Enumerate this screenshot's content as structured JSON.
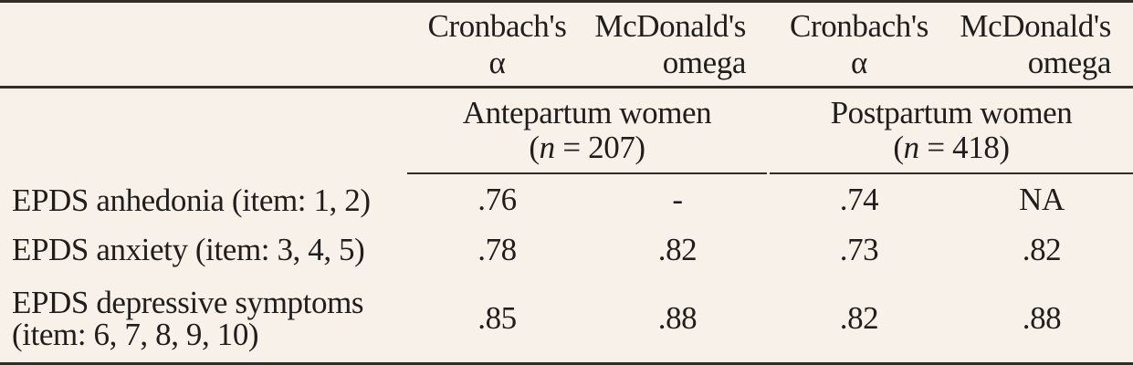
{
  "table": {
    "description": "Internal consistency (reliability) statistics for EPDS subscales",
    "colors": {
      "background": "#f8f1ea",
      "text": "#211d1b",
      "rule_lines": "#332d28"
    },
    "column_headers": [
      {
        "line1": "Cronbach's",
        "line2": "α"
      },
      {
        "line1": "McDonald's",
        "line2": "omega"
      },
      {
        "line1": "Cronbach's",
        "line2": "α"
      },
      {
        "line1": "McDonald's",
        "line2": "omega"
      }
    ],
    "group_headers": [
      {
        "title": "Antepartum women",
        "n_open": "(",
        "n_var": "n",
        "n_rest": " = 207)"
      },
      {
        "title": "Postpartum women",
        "n_open": "(",
        "n_var": "n",
        "n_rest": " = 418)"
      }
    ],
    "rows": [
      {
        "label_lines": [
          "EPDS anhedonia (item: 1, 2)"
        ],
        "values": [
          ".76",
          "-",
          ".74",
          "NA"
        ]
      },
      {
        "label_lines": [
          "EPDS anxiety (item: 3, 4, 5)"
        ],
        "values": [
          ".78",
          ".82",
          ".73",
          ".82"
        ]
      },
      {
        "label_lines": [
          "EPDS depressive symptoms",
          "(item: 6, 7, 8, 9, 10)"
        ],
        "values": [
          ".85",
          ".88",
          ".82",
          ".88"
        ]
      }
    ]
  }
}
